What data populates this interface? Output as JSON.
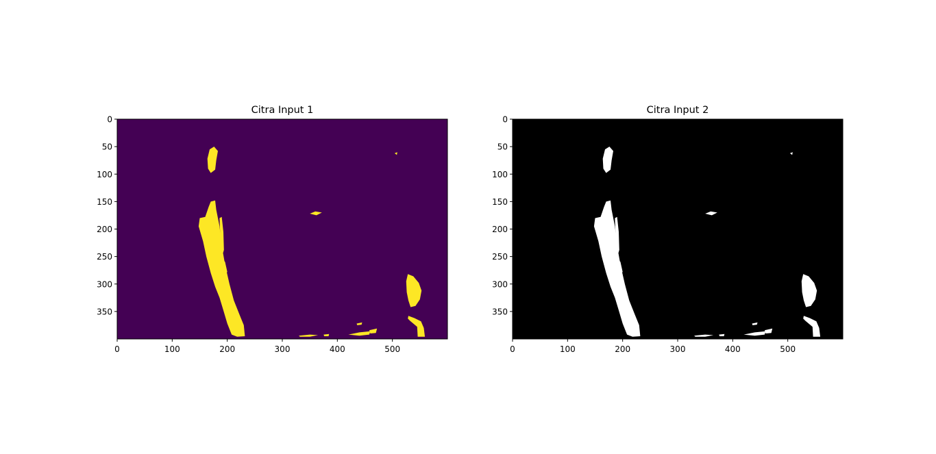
{
  "chart_data": [
    {
      "type": "heatmap",
      "title": "Citra Input 1",
      "colormap": "viridis",
      "colors": {
        "background": "#440154",
        "foreground": "#fde725"
      },
      "xlim": [
        0,
        600
      ],
      "ylim": [
        400,
        0
      ],
      "xticks": [
        0,
        100,
        200,
        300,
        400,
        500
      ],
      "yticks": [
        0,
        50,
        100,
        150,
        200,
        250,
        300,
        350
      ],
      "regions": [
        {
          "name": "upper-left-blob",
          "points": [
            [
              168,
              55
            ],
            [
              176,
              50
            ],
            [
              183,
              58
            ],
            [
              180,
              75
            ],
            [
              178,
              92
            ],
            [
              170,
              98
            ],
            [
              165,
              90
            ],
            [
              164,
              72
            ]
          ]
        },
        {
          "name": "left-streak",
          "points": [
            [
              170,
              150
            ],
            [
              178,
              148
            ],
            [
              180,
              165
            ],
            [
              186,
              195
            ],
            [
              190,
              230
            ],
            [
              196,
              265
            ],
            [
              204,
              300
            ],
            [
              212,
              330
            ],
            [
              222,
              355
            ],
            [
              230,
              375
            ],
            [
              232,
              395
            ],
            [
              218,
              396
            ],
            [
              208,
              392
            ],
            [
              200,
              372
            ],
            [
              193,
              348
            ],
            [
              186,
              325
            ],
            [
              178,
              305
            ],
            [
              170,
              280
            ],
            [
              162,
              250
            ],
            [
              156,
              222
            ],
            [
              148,
              195
            ],
            [
              150,
              180
            ],
            [
              160,
              178
            ],
            [
              166,
              160
            ]
          ]
        },
        {
          "name": "left-streak-fragment",
          "points": [
            [
              186,
              180
            ],
            [
              190,
              178
            ],
            [
              193,
              205
            ],
            [
              194,
              238
            ],
            [
              192,
              245
            ],
            [
              188,
              235
            ],
            [
              187,
              205
            ]
          ]
        },
        {
          "name": "left-streak-edge",
          "points": [
            [
              192,
              255
            ],
            [
              196,
              260
            ],
            [
              200,
              278
            ],
            [
              196,
              282
            ],
            [
              192,
              270
            ]
          ]
        },
        {
          "name": "center-sliver",
          "points": [
            [
              350,
              172
            ],
            [
              360,
              168
            ],
            [
              372,
              170
            ],
            [
              362,
              175
            ]
          ]
        },
        {
          "name": "upper-right-speck",
          "points": [
            [
              504,
              62
            ],
            [
              509,
              60
            ],
            [
              508,
              65
            ]
          ]
        },
        {
          "name": "right-blob",
          "points": [
            [
              528,
              282
            ],
            [
              538,
              286
            ],
            [
              548,
              298
            ],
            [
              553,
              312
            ],
            [
              550,
              328
            ],
            [
              542,
              340
            ],
            [
              533,
              342
            ],
            [
              529,
              330
            ],
            [
              526,
              315
            ],
            [
              525,
              295
            ]
          ]
        },
        {
          "name": "lower-right-blob",
          "points": [
            [
              529,
              358
            ],
            [
              540,
              362
            ],
            [
              552,
              368
            ],
            [
              557,
              380
            ],
            [
              559,
              396
            ],
            [
              546,
              396
            ],
            [
              545,
              378
            ],
            [
              532,
              367
            ],
            [
              528,
              363
            ]
          ]
        },
        {
          "name": "bottom-fragment-1",
          "points": [
            [
              420,
              392
            ],
            [
              440,
              388
            ],
            [
              460,
              386
            ],
            [
              458,
              392
            ],
            [
              440,
              394
            ]
          ]
        },
        {
          "name": "bottom-fragment-2",
          "points": [
            [
              458,
              384
            ],
            [
              472,
              381
            ],
            [
              470,
              389
            ],
            [
              460,
              390
            ]
          ]
        },
        {
          "name": "bottom-fragment-3",
          "points": [
            [
              435,
              372
            ],
            [
              445,
              370
            ],
            [
              444,
              374
            ],
            [
              436,
              375
            ]
          ]
        },
        {
          "name": "bottom-fragment-4",
          "points": [
            [
              330,
              394
            ],
            [
              350,
              392
            ],
            [
              365,
              393
            ],
            [
              350,
              396
            ],
            [
              332,
              396
            ]
          ]
        },
        {
          "name": "bottom-fragment-5",
          "points": [
            [
              375,
              392
            ],
            [
              385,
              391
            ],
            [
              384,
              395
            ],
            [
              376,
              395
            ]
          ]
        }
      ]
    },
    {
      "type": "heatmap",
      "title": "Citra Input 2",
      "colormap": "gray",
      "colors": {
        "background": "#000000",
        "foreground": "#ffffff"
      },
      "xlim": [
        0,
        600
      ],
      "ylim": [
        400,
        0
      ],
      "xticks": [
        0,
        100,
        200,
        300,
        400,
        500
      ],
      "yticks": [
        0,
        50,
        100,
        150,
        200,
        250,
        300,
        350
      ],
      "regions": [
        {
          "name": "upper-left-blob",
          "points": [
            [
              168,
              55
            ],
            [
              176,
              50
            ],
            [
              183,
              58
            ],
            [
              180,
              75
            ],
            [
              178,
              92
            ],
            [
              170,
              98
            ],
            [
              165,
              90
            ],
            [
              164,
              72
            ]
          ]
        },
        {
          "name": "left-streak",
          "points": [
            [
              170,
              150
            ],
            [
              178,
              148
            ],
            [
              180,
              165
            ],
            [
              186,
              195
            ],
            [
              190,
              230
            ],
            [
              196,
              265
            ],
            [
              204,
              300
            ],
            [
              212,
              330
            ],
            [
              222,
              355
            ],
            [
              230,
              375
            ],
            [
              232,
              395
            ],
            [
              218,
              396
            ],
            [
              208,
              392
            ],
            [
              200,
              372
            ],
            [
              193,
              348
            ],
            [
              186,
              325
            ],
            [
              178,
              305
            ],
            [
              170,
              280
            ],
            [
              162,
              250
            ],
            [
              156,
              222
            ],
            [
              148,
              195
            ],
            [
              150,
              180
            ],
            [
              160,
              178
            ],
            [
              166,
              160
            ]
          ]
        },
        {
          "name": "left-streak-fragment",
          "points": [
            [
              186,
              180
            ],
            [
              190,
              178
            ],
            [
              193,
              205
            ],
            [
              194,
              238
            ],
            [
              192,
              245
            ],
            [
              188,
              235
            ],
            [
              187,
              205
            ]
          ]
        },
        {
          "name": "left-streak-edge",
          "points": [
            [
              192,
              255
            ],
            [
              196,
              260
            ],
            [
              200,
              278
            ],
            [
              196,
              282
            ],
            [
              192,
              270
            ]
          ]
        },
        {
          "name": "center-sliver",
          "points": [
            [
              350,
              172
            ],
            [
              360,
              168
            ],
            [
              372,
              170
            ],
            [
              362,
              175
            ]
          ]
        },
        {
          "name": "upper-right-speck",
          "points": [
            [
              504,
              62
            ],
            [
              509,
              60
            ],
            [
              508,
              65
            ]
          ]
        },
        {
          "name": "right-blob",
          "points": [
            [
              528,
              282
            ],
            [
              538,
              286
            ],
            [
              548,
              298
            ],
            [
              553,
              312
            ],
            [
              550,
              328
            ],
            [
              542,
              340
            ],
            [
              533,
              342
            ],
            [
              529,
              330
            ],
            [
              526,
              315
            ],
            [
              525,
              295
            ]
          ]
        },
        {
          "name": "lower-right-blob",
          "points": [
            [
              529,
              358
            ],
            [
              540,
              362
            ],
            [
              552,
              368
            ],
            [
              557,
              380
            ],
            [
              559,
              396
            ],
            [
              546,
              396
            ],
            [
              545,
              378
            ],
            [
              532,
              367
            ],
            [
              528,
              363
            ]
          ]
        },
        {
          "name": "bottom-fragment-1",
          "points": [
            [
              420,
              392
            ],
            [
              440,
              388
            ],
            [
              460,
              386
            ],
            [
              458,
              392
            ],
            [
              440,
              394
            ]
          ]
        },
        {
          "name": "bottom-fragment-2",
          "points": [
            [
              458,
              384
            ],
            [
              472,
              381
            ],
            [
              470,
              389
            ],
            [
              460,
              390
            ]
          ]
        },
        {
          "name": "bottom-fragment-3",
          "points": [
            [
              435,
              372
            ],
            [
              445,
              370
            ],
            [
              444,
              374
            ],
            [
              436,
              375
            ]
          ]
        },
        {
          "name": "bottom-fragment-4",
          "points": [
            [
              330,
              394
            ],
            [
              350,
              392
            ],
            [
              365,
              393
            ],
            [
              350,
              396
            ],
            [
              332,
              396
            ]
          ]
        },
        {
          "name": "bottom-fragment-5",
          "points": [
            [
              375,
              392
            ],
            [
              385,
              391
            ],
            [
              384,
              395
            ],
            [
              376,
              395
            ]
          ]
        }
      ]
    }
  ]
}
